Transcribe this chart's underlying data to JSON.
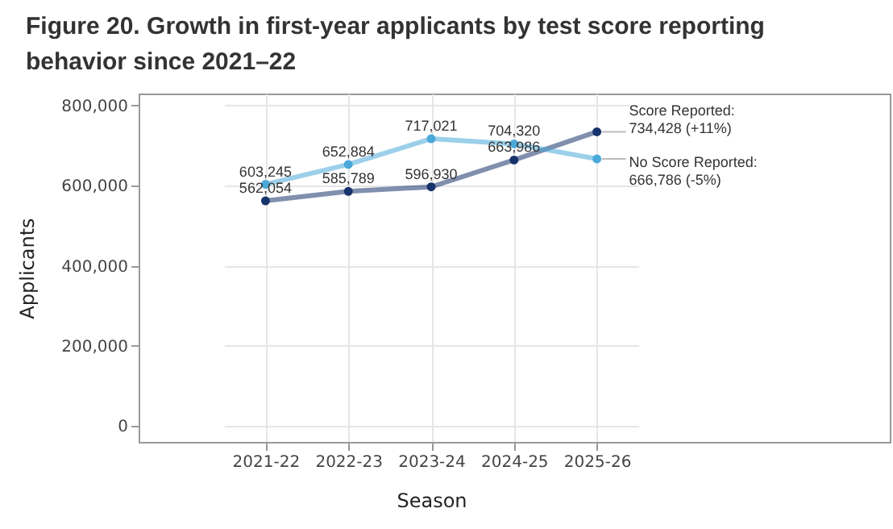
{
  "chart_data": {
    "type": "line",
    "title": "Figure 20. Growth in first-year applicants by test score reporting behavior since 2021–22",
    "xlabel": "Season",
    "ylabel": "Applicants",
    "categories": [
      "2021-22",
      "2022-23",
      "2023-24",
      "2024-25",
      "2025-26"
    ],
    "series": [
      {
        "name": "Score Reported:",
        "color": "#17336b",
        "values": [
          562054,
          585789,
          596930,
          663986,
          734428
        ],
        "value_labels": [
          "562,054",
          "585,789",
          "596,930",
          "663,986",
          "734,428 (+11%)"
        ]
      },
      {
        "name": "No Score Reported:",
        "color": "#4aa9d9",
        "values": [
          603245,
          652884,
          717021,
          704320,
          666786
        ],
        "value_labels": [
          "603,245",
          "652,884",
          "717,021",
          "704,320",
          "666,786 (-5%)"
        ]
      }
    ],
    "ylim": [
      -40000,
      830000
    ],
    "yticks": [
      {
        "value": 0,
        "label": "0"
      },
      {
        "value": 200000,
        "label": "200,000"
      },
      {
        "value": 400000,
        "label": "400,000"
      },
      {
        "value": 600000,
        "label": "600,000"
      },
      {
        "value": 800000,
        "label": "800,000"
      }
    ],
    "grid": true,
    "legend": false,
    "marker": "circle",
    "line_style": "solid"
  }
}
